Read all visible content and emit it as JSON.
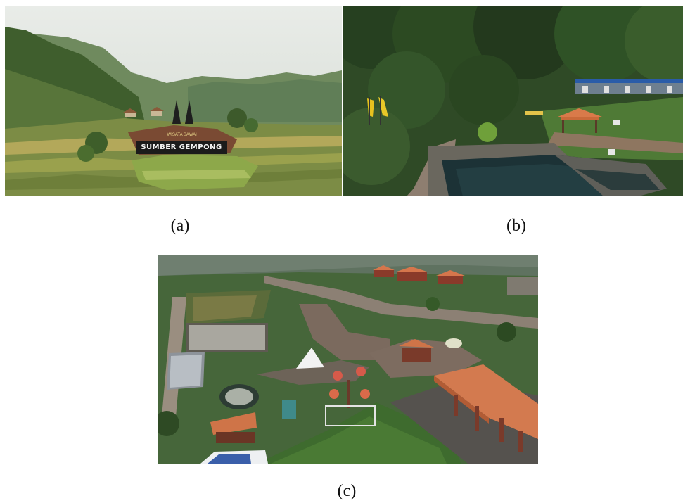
{
  "figure": {
    "panels": [
      {
        "caption": "(a)",
        "sign_small": "WISATA SAWAH",
        "sign_main": "SUMBER GEMPONG"
      },
      {
        "caption": "(b)"
      },
      {
        "caption": "(c)"
      }
    ]
  }
}
